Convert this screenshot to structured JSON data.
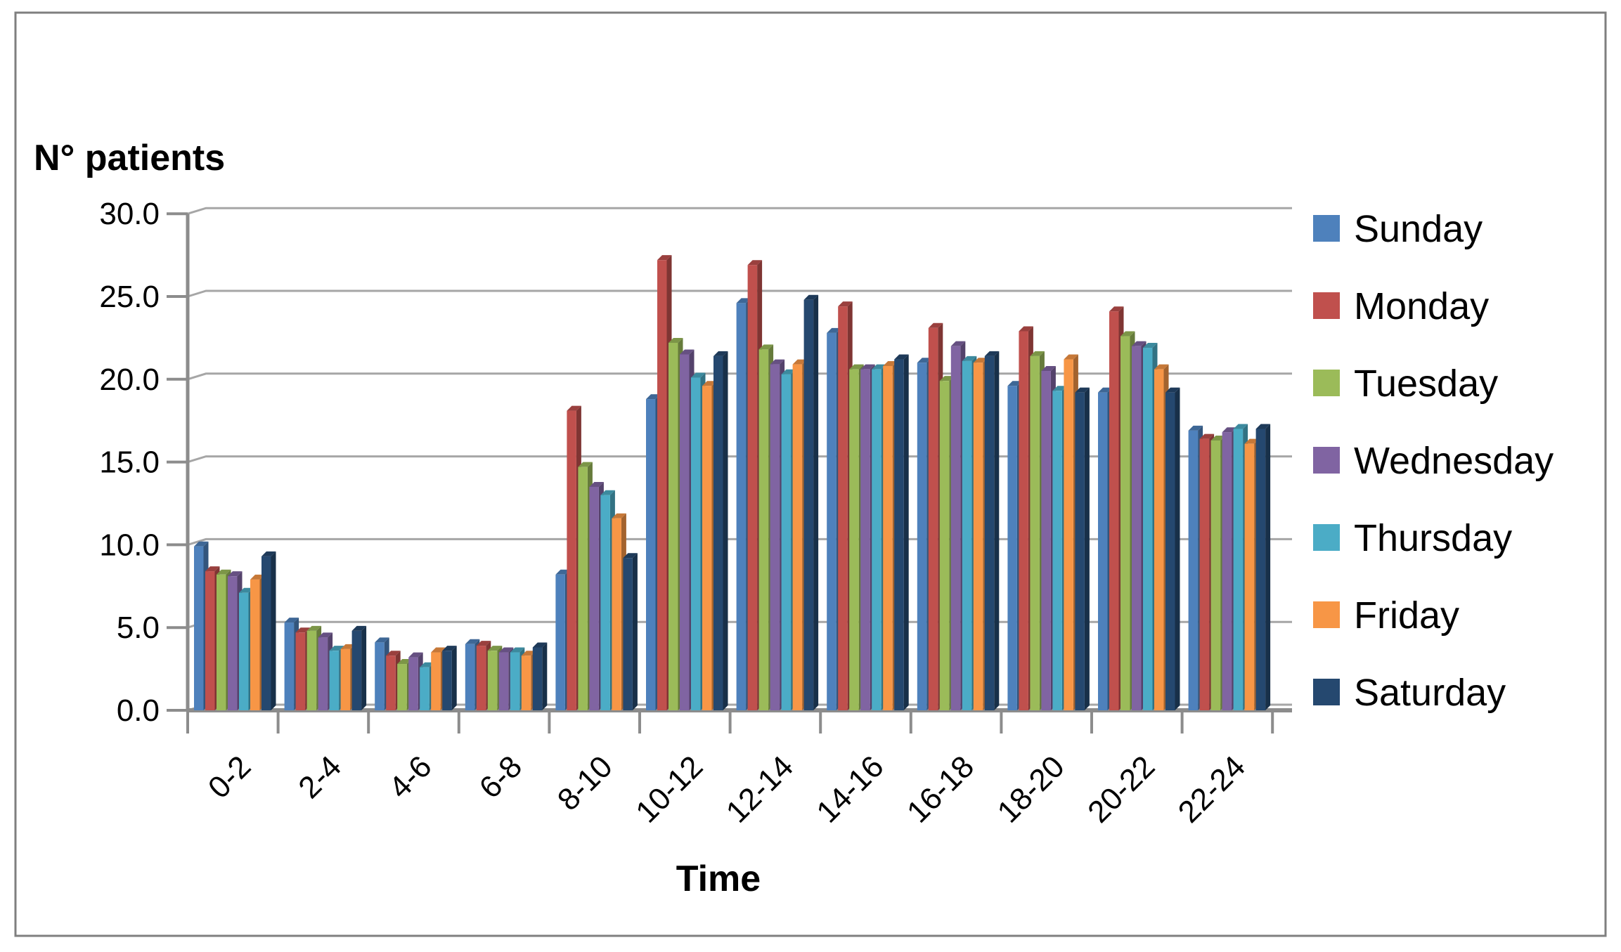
{
  "chart_data": {
    "type": "bar",
    "y_axis_title": "N° patients",
    "x_axis_title": "Time",
    "categories": [
      "0-2",
      "2-4",
      "4-6",
      "6-8",
      "8-10",
      "10-12",
      "12-14",
      "14-16",
      "16-18",
      "18-20",
      "20-22",
      "22-24"
    ],
    "series": [
      {
        "name": "Sunday",
        "color": "#4E81BC",
        "values": [
          9.9,
          5.3,
          4.1,
          4.0,
          8.2,
          18.8,
          24.6,
          22.8,
          21.0,
          19.6,
          19.2,
          16.9
        ]
      },
      {
        "name": "Monday",
        "color": "#C0504D",
        "values": [
          8.4,
          4.7,
          3.3,
          3.9,
          18.1,
          27.2,
          26.9,
          24.4,
          23.1,
          22.9,
          24.1,
          16.4
        ]
      },
      {
        "name": "Tuesday",
        "color": "#9BBB59",
        "values": [
          8.2,
          4.8,
          2.8,
          3.6,
          14.7,
          22.2,
          21.8,
          20.6,
          19.9,
          21.4,
          22.6,
          16.3
        ]
      },
      {
        "name": "Wednesday",
        "color": "#8064A2",
        "values": [
          8.1,
          4.4,
          3.2,
          3.5,
          13.5,
          21.5,
          20.9,
          20.6,
          22.0,
          20.5,
          22.0,
          16.8
        ]
      },
      {
        "name": "Thursday",
        "color": "#4BACC6",
        "values": [
          7.1,
          3.6,
          2.6,
          3.5,
          13.0,
          20.1,
          20.3,
          20.6,
          21.1,
          19.3,
          21.9,
          17.0
        ]
      },
      {
        "name": "Friday",
        "color": "#F79646",
        "values": [
          7.9,
          3.7,
          3.5,
          3.3,
          11.6,
          19.6,
          20.9,
          20.8,
          21.0,
          21.2,
          20.6,
          16.1
        ]
      },
      {
        "name": "Saturday",
        "color": "#25486F",
        "values": [
          9.3,
          4.8,
          3.6,
          3.8,
          9.2,
          21.4,
          24.8,
          21.2,
          21.4,
          19.2,
          19.2,
          17.0
        ]
      }
    ],
    "ylim": [
      0,
      30
    ],
    "ytick_step": 5,
    "ytick_labels": [
      "0.0",
      "5.0",
      "10.0",
      "15.0",
      "20.0",
      "25.0",
      "30.0"
    ],
    "grid": true,
    "legend_position": "right",
    "legend_labels": [
      "Sunday",
      "Monday",
      "Tuesday",
      "Wednesday",
      "Thursday",
      "Friday",
      "Saturday"
    ]
  }
}
